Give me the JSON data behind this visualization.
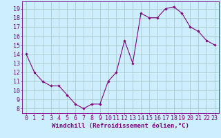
{
  "x": [
    0,
    1,
    2,
    3,
    4,
    5,
    6,
    7,
    8,
    9,
    10,
    11,
    12,
    13,
    14,
    15,
    16,
    17,
    18,
    19,
    20,
    21,
    22,
    23
  ],
  "y": [
    14,
    12,
    11,
    10.5,
    10.5,
    9.5,
    8.5,
    8,
    8.5,
    8.5,
    11,
    12,
    15.5,
    13,
    18.5,
    18,
    18,
    19,
    19.2,
    18.5,
    17,
    16.5,
    15.5,
    15
  ],
  "xlabel": "Windchill (Refroidissement éolien,°C)",
  "line_color": "#800080",
  "marker_color": "#800080",
  "bg_color": "#cceeff",
  "grid_color": "#aacccc",
  "xlim": [
    -0.5,
    23.5
  ],
  "ylim": [
    7.5,
    19.8
  ],
  "yticks": [
    8,
    9,
    10,
    11,
    12,
    13,
    14,
    15,
    16,
    17,
    18,
    19
  ],
  "xticks": [
    0,
    1,
    2,
    3,
    4,
    5,
    6,
    7,
    8,
    9,
    10,
    11,
    12,
    13,
    14,
    15,
    16,
    17,
    18,
    19,
    20,
    21,
    22,
    23
  ],
  "tick_label_color": "#800080",
  "xlabel_fontsize": 6.5,
  "tick_fontsize": 6.0,
  "xlabel_fontweight": "bold"
}
